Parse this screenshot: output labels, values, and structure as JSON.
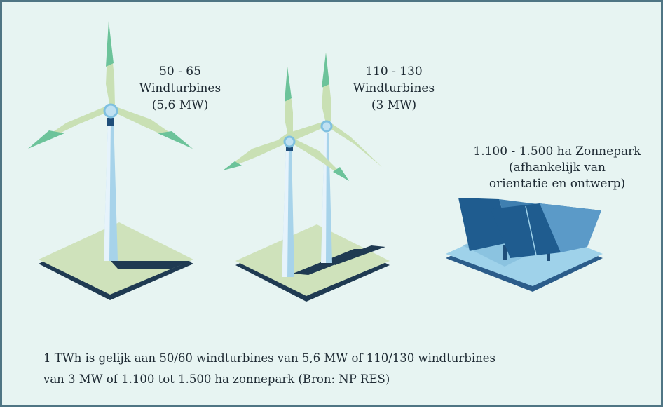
{
  "items": [
    {
      "lines": [
        "50 - 65",
        "Windturbines",
        "(5,6 MW)"
      ]
    },
    {
      "lines": [
        "110 - 130",
        "Windturbines",
        "(3 MW)"
      ]
    },
    {
      "lines": [
        "1.100 - 1.500 ha  Zonnepark",
        "(afhankelijk van",
        "orientatie en ontwerp)"
      ]
    }
  ],
  "footnote": [
    "1 TWh is gelijk aan 50/60 windturbines van 5,6 MW of 110/130 windturbines",
    "van 3 MW of 1.100 tot 1.500 ha zonnepark (Bron: NP RES)"
  ]
}
